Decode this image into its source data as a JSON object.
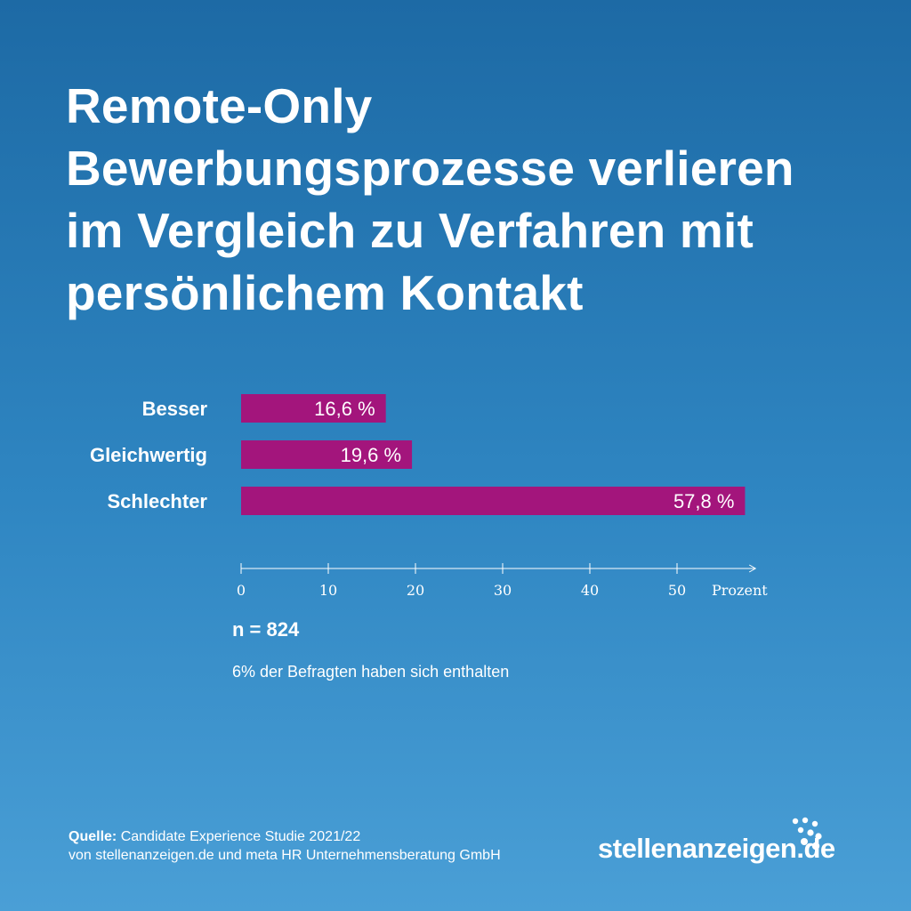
{
  "title_lines": [
    "Remote-Only",
    "Bewerbungsprozesse verlieren",
    "im Vergleich zu Verfahren mit",
    "persönlichem Kontakt"
  ],
  "chart_data": {
    "type": "bar",
    "orientation": "horizontal",
    "categories": [
      "Besser",
      "Gleichwertig",
      "Schlechter"
    ],
    "values": [
      16.6,
      19.6,
      57.8
    ],
    "value_labels": [
      "16,6 %",
      "19,6 %",
      "57,8 %"
    ],
    "xlim": [
      0,
      59
    ],
    "x_ticks": [
      0,
      10,
      20,
      30,
      40,
      50
    ],
    "x_tick_labels": [
      "0",
      "10",
      "20",
      "30",
      "40",
      "50"
    ],
    "xlabel": "Prozent",
    "bar_color": "#a3157c",
    "grid": false
  },
  "sample_size": "n = 824",
  "note": "6% der Befragten haben sich enthalten",
  "source": {
    "label": "Quelle:",
    "line1": "Candidate Experience Studie 2021/22",
    "line2": "von stellenanzeigen.de und meta HR Unternehmensberatung GmbH"
  },
  "logo": {
    "text": "stellenanzeigen.de"
  },
  "colors": {
    "background_top": "#1d6aa5",
    "background_bottom": "#4a9fd6",
    "bar": "#a3157c",
    "text": "#ffffff"
  }
}
